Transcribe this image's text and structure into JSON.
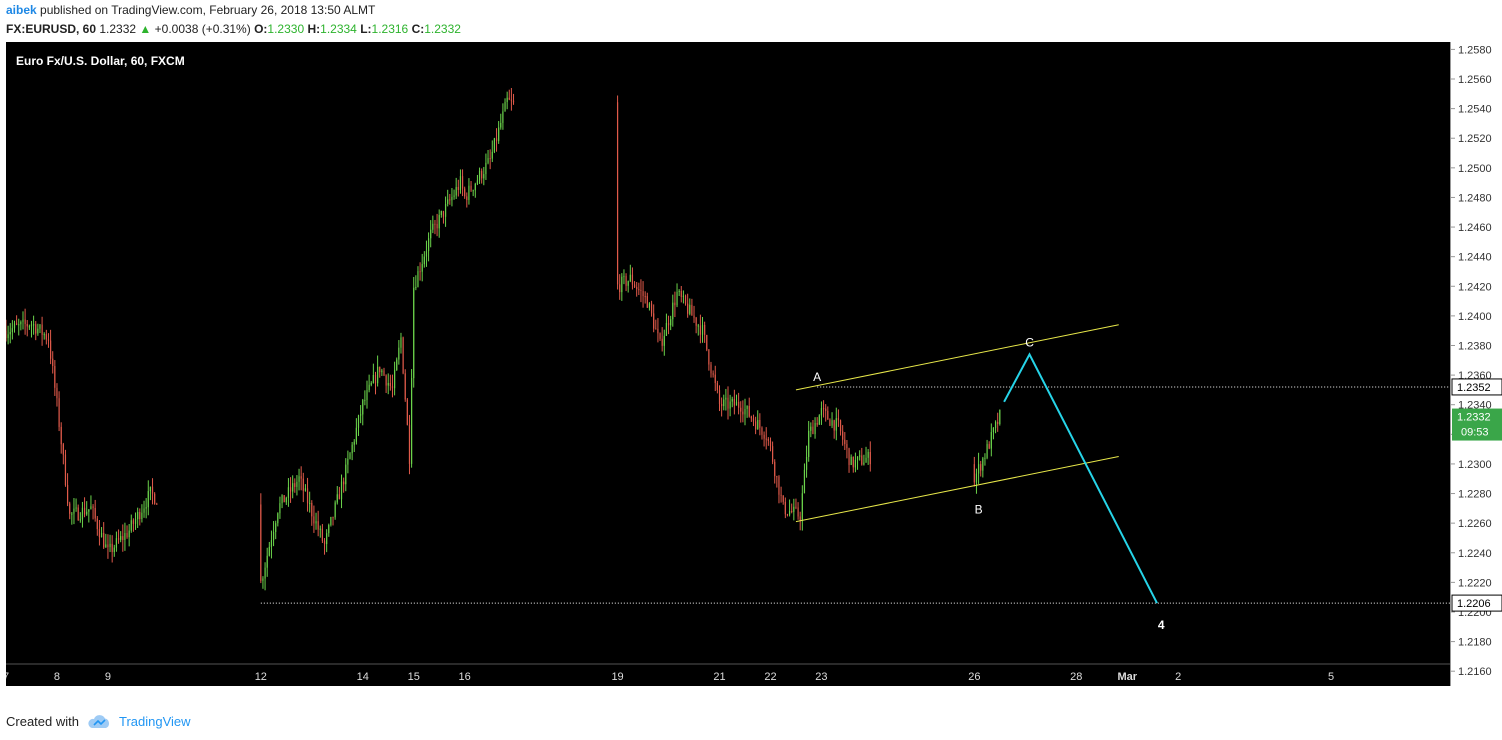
{
  "header": {
    "author": "aibek",
    "published_text": " published on TradingView.com, February 26, 2018 13:50 ALMT",
    "symbol": "FX:EURUSD, 60",
    "last": "1.2332",
    "change": "+0.0038 (+0.31%)",
    "o_label": "O:",
    "o_value": "1.2330",
    "h_label": "H:",
    "h_value": "1.2334",
    "l_label": "L:",
    "l_value": "1.2316",
    "c_label": "C:",
    "c_value": "1.2332"
  },
  "footer": {
    "created_with": "Created with",
    "brand": "TradingView"
  },
  "colors": {
    "up": "#6bd34b",
    "down": "#e05a4a",
    "channel": "#e8e84a",
    "projection": "#26d4e8",
    "background": "#000000"
  },
  "chart_data": {
    "type": "candlestick",
    "title": "Euro Fx/U.S. Dollar, 60, FXCM",
    "y_ticks": [
      1.258,
      1.256,
      1.254,
      1.252,
      1.25,
      1.248,
      1.246,
      1.244,
      1.242,
      1.24,
      1.238,
      1.236,
      1.234,
      1.232,
      1.23,
      1.228,
      1.226,
      1.224,
      1.222,
      1.22,
      1.218,
      1.216
    ],
    "y_range": [
      1.215,
      1.2585
    ],
    "x_ticks": [
      "7",
      "8",
      "9",
      "12",
      "14",
      "15",
      "16",
      "19",
      "21",
      "22",
      "23",
      "26",
      "28",
      "Mar",
      "2",
      "5"
    ],
    "x_tick_dates": [
      "2018-02-07",
      "2018-02-08",
      "2018-02-09",
      "2018-02-12",
      "2018-02-14",
      "2018-02-15",
      "2018-02-16",
      "2018-02-19",
      "2018-02-21",
      "2018-02-22",
      "2018-02-23",
      "2018-02-26",
      "2018-02-28",
      "2018-03-01",
      "2018-03-02",
      "2018-03-05"
    ],
    "x_range": [
      "2018-02-07 00:00",
      "2018-03-07 08:00"
    ],
    "price_path": [
      [
        "2018-02-07 00:00",
        1.239
      ],
      [
        "2018-02-07 12:00",
        1.2395
      ],
      [
        "2018-02-07 20:00",
        1.2385
      ],
      [
        "2018-02-08 00:00",
        1.234
      ],
      [
        "2018-02-08 06:00",
        1.2265
      ],
      [
        "2018-02-08 16:00",
        1.227
      ],
      [
        "2018-02-09 00:00",
        1.224
      ],
      [
        "2018-02-09 10:00",
        1.2255
      ],
      [
        "2018-02-09 20:00",
        1.228
      ],
      [
        "2018-02-12 00:00",
        1.222
      ],
      [
        "2018-02-12 08:00",
        1.227
      ],
      [
        "2018-02-12 18:00",
        1.229
      ],
      [
        "2018-02-13 06:00",
        1.2245
      ],
      [
        "2018-02-13 16:00",
        1.2295
      ],
      [
        "2018-02-14 00:00",
        1.234
      ],
      [
        "2018-02-14 08:00",
        1.2365
      ],
      [
        "2018-02-14 14:00",
        1.235
      ],
      [
        "2018-02-14 18:00",
        1.2385
      ],
      [
        "2018-02-14 22:00",
        1.2305
      ],
      [
        "2018-02-15 00:00",
        1.242
      ],
      [
        "2018-02-15 08:00",
        1.2455
      ],
      [
        "2018-02-15 22:00",
        1.249
      ],
      [
        "2018-02-16 00:00",
        1.248
      ],
      [
        "2018-02-16 12:00",
        1.2505
      ],
      [
        "2018-02-16 20:00",
        1.2545
      ],
      [
        "2018-02-17 02:00",
        1.254
      ],
      [
        "2018-02-17 08:00",
        1.248
      ],
      [
        "2018-02-17 16:00",
        1.243
      ],
      [
        "2018-02-19 00:00",
        1.242
      ],
      [
        "2018-02-19 06:00",
        1.2425
      ],
      [
        "2018-02-19 14:00",
        1.241
      ],
      [
        "2018-02-19 20:00",
        1.238
      ],
      [
        "2018-02-20 04:00",
        1.2415
      ],
      [
        "2018-02-20 16:00",
        1.239
      ],
      [
        "2018-02-21 00:00",
        1.234
      ],
      [
        "2018-02-21 10:00",
        1.234
      ],
      [
        "2018-02-21 22:00",
        1.232
      ],
      [
        "2018-02-22 00:00",
        1.231
      ],
      [
        "2018-02-22 06:00",
        1.227
      ],
      [
        "2018-02-22 14:00",
        1.2265
      ],
      [
        "2018-02-22 18:00",
        1.232
      ],
      [
        "2018-02-23 00:00",
        1.2335
      ],
      [
        "2018-02-23 08:00",
        1.2325
      ],
      [
        "2018-02-23 14:00",
        1.23
      ],
      [
        "2018-02-24 00:00",
        1.2305
      ],
      [
        "2018-02-25 20:00",
        1.23
      ],
      [
        "2018-02-26 00:00",
        1.229
      ],
      [
        "2018-02-26 06:00",
        1.231
      ],
      [
        "2018-02-26 12:00",
        1.2332
      ]
    ],
    "annotations": [
      {
        "label": "A",
        "date": "2018-02-22 22:00",
        "price": 1.2352
      },
      {
        "label": "B",
        "date": "2018-02-26 02:00",
        "price": 1.228
      },
      {
        "label": "C",
        "date": "2018-02-27 02:00",
        "price": 1.2374
      },
      {
        "label": "4",
        "date": "2018-03-01 16:00",
        "price": 1.2206
      }
    ],
    "channel_lines": [
      {
        "from": [
          "2018-02-22 12:00",
          1.235
        ],
        "to": [
          "2018-02-28 20:00",
          1.2394
        ]
      },
      {
        "from": [
          "2018-02-22 12:00",
          1.2261
        ],
        "to": [
          "2018-02-28 20:00",
          1.2305
        ]
      }
    ],
    "projection": [
      [
        "2018-02-26 14:00",
        1.2342
      ],
      [
        "2018-02-27 02:00",
        1.2374
      ],
      [
        "2018-03-01 14:00",
        1.2206
      ]
    ],
    "horizontal_levels": [
      {
        "price": 1.2352,
        "label": "1.2352",
        "from": "2018-02-22 22:00"
      },
      {
        "price": 1.2206,
        "label": "1.2206",
        "from": "2018-02-12 00:00"
      }
    ],
    "last_price": {
      "value": 1.2332,
      "label": "1.2332",
      "countdown": "09:53"
    }
  }
}
